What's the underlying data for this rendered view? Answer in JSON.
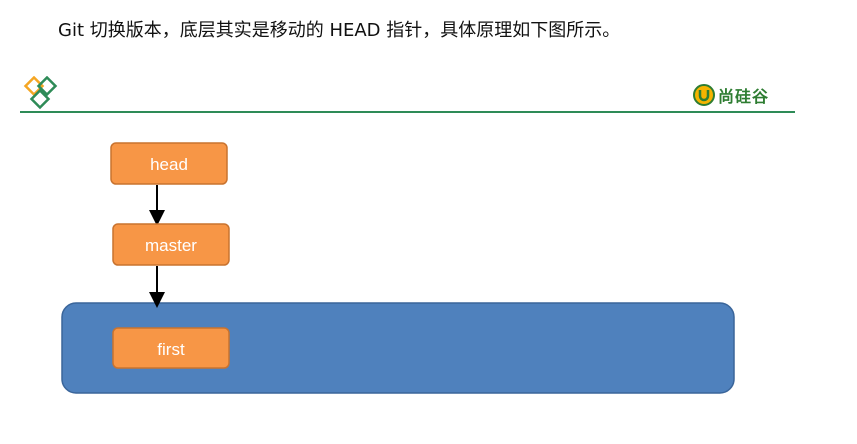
{
  "caption": "Git 切换版本，底层其实是移动的 HEAD 指针，具体原理如下图所示。",
  "brand": {
    "name": "尚硅谷",
    "left_logo_icon": "interlocking-diamonds-icon",
    "right_logo_icon": "u-badge-icon",
    "accent": "#2e8b57"
  },
  "diagram": {
    "nodes": {
      "head": "head",
      "master": "master",
      "first": "first"
    },
    "colors": {
      "node_fill": "#f79646",
      "node_stroke": "#c9732f",
      "commit_area_fill": "#4f81bd",
      "commit_area_stroke": "#3a659a",
      "arrow": "#000000"
    }
  }
}
